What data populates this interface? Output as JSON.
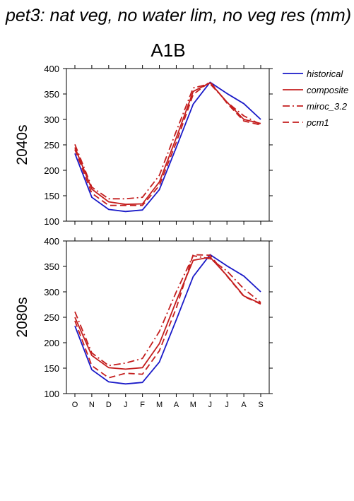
{
  "figure": {
    "title": "pet3: nat veg, no water lim, no veg res (mm)",
    "scenario": "A1B"
  },
  "legend": {
    "position": "right",
    "entries": [
      {
        "label": "historical",
        "color": "#1a1ac8",
        "dash": "solid"
      },
      {
        "label": "composite",
        "color": "#c41e1e",
        "dash": "solid"
      },
      {
        "label": "miroc_3.2",
        "color": "#c41e1e",
        "dash": "dashdot"
      },
      {
        "label": "pcm1",
        "color": "#c41e1e",
        "dash": "dashed"
      }
    ]
  },
  "chart_data": [
    {
      "type": "line",
      "row_label": "2040s",
      "categories": [
        "O",
        "N",
        "D",
        "J",
        "F",
        "M",
        "A",
        "M",
        "J",
        "J",
        "A",
        "S"
      ],
      "ylim": [
        100,
        400
      ],
      "yticks": [
        100,
        150,
        200,
        250,
        300,
        350,
        400
      ],
      "show_month_labels": false,
      "series": [
        {
          "name": "historical",
          "color": "#1a1ac8",
          "dash": "solid",
          "values": [
            233,
            147,
            123,
            119,
            122,
            162,
            245,
            330,
            373,
            351,
            331,
            300
          ]
        },
        {
          "name": "composite",
          "color": "#c41e1e",
          "dash": "solid",
          "values": [
            245,
            163,
            138,
            133,
            134,
            177,
            264,
            355,
            372,
            334,
            300,
            292
          ]
        },
        {
          "name": "miroc_3.2",
          "color": "#c41e1e",
          "dash": "dashdot",
          "values": [
            251,
            167,
            144,
            144,
            147,
            190,
            277,
            362,
            370,
            334,
            307,
            290
          ]
        },
        {
          "name": "pcm1",
          "color": "#c41e1e",
          "dash": "dashed",
          "values": [
            241,
            155,
            131,
            131,
            131,
            170,
            255,
            349,
            374,
            332,
            297,
            289
          ]
        }
      ]
    },
    {
      "type": "line",
      "row_label": "2080s",
      "categories": [
        "O",
        "N",
        "D",
        "J",
        "F",
        "M",
        "A",
        "M",
        "J",
        "J",
        "A",
        "S"
      ],
      "ylim": [
        100,
        400
      ],
      "yticks": [
        100,
        150,
        200,
        250,
        300,
        350,
        400
      ],
      "show_month_labels": true,
      "series": [
        {
          "name": "historical",
          "color": "#1a1ac8",
          "dash": "solid",
          "values": [
            233,
            147,
            123,
            119,
            122,
            162,
            245,
            330,
            373,
            351,
            331,
            300
          ]
        },
        {
          "name": "composite",
          "color": "#c41e1e",
          "dash": "solid",
          "values": [
            250,
            175,
            151,
            148,
            151,
            198,
            282,
            362,
            368,
            332,
            292,
            277
          ]
        },
        {
          "name": "miroc_3.2",
          "color": "#c41e1e",
          "dash": "dashdot",
          "values": [
            261,
            180,
            155,
            160,
            169,
            222,
            300,
            371,
            365,
            341,
            306,
            279
          ]
        },
        {
          "name": "pcm1",
          "color": "#c41e1e",
          "dash": "dashed",
          "values": [
            243,
            155,
            131,
            140,
            138,
            184,
            268,
            373,
            372,
            331,
            291,
            276
          ]
        }
      ]
    }
  ]
}
